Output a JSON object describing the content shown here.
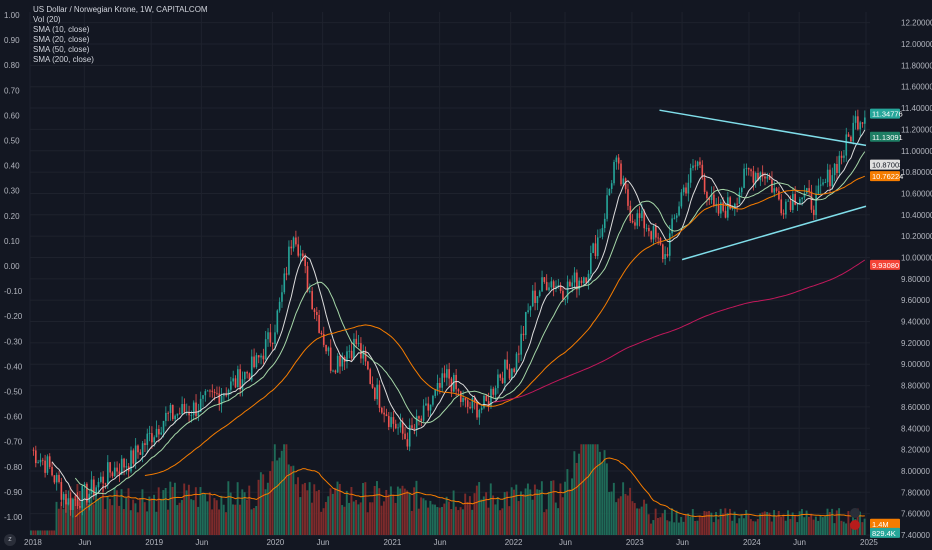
{
  "header": {
    "title": "US Dollar / Norwegian Krone, 1W, CAPITALCOM",
    "indicators": [
      "Vol (20)",
      "SMA (10, close)",
      "SMA (20, close)",
      "SMA (50, close)",
      "SMA (200, close)"
    ]
  },
  "colors": {
    "background": "#131722",
    "grid": "#1e222d",
    "up": "#26a69a",
    "down": "#ef5350",
    "vol_up": "#1f6b58",
    "vol_down": "#7d2b2b",
    "sma10": "#dcdcdc",
    "sma20": "#a5d6a7",
    "sma50": "#f57c00",
    "sma200": "#c2185b",
    "vol_ma": "#f57c00",
    "trendline": "#80deea"
  },
  "icons": {
    "bolt": "bolt-icon",
    "flag": "flag-icon",
    "corner": "timezone-icon"
  },
  "chart_data": {
    "type": "candlestick",
    "symbol": "USDNOK",
    "interval": "1W",
    "x_labels": [
      "2018",
      "Jun",
      "2019",
      "Jun",
      "2020",
      "Jun",
      "2021",
      "Jun",
      "2022",
      "Jun",
      "2023",
      "Jun",
      "2024",
      "Jun",
      "2025"
    ],
    "price_ticks": [
      "12.20000",
      "12.00000",
      "11.80000",
      "11.60000",
      "11.40000",
      "11.20000",
      "11.00000",
      "10.80000",
      "10.60000",
      "10.40000",
      "10.20000",
      "10.00000",
      "9.80000",
      "9.60000",
      "9.40000",
      "9.20000",
      "9.00000",
      "8.80000",
      "8.60000",
      "8.40000",
      "8.20000",
      "8.00000",
      "7.80000",
      "7.60000",
      "7.40000"
    ],
    "left_ticks": [
      "1.00",
      "0.90",
      "0.80",
      "0.70",
      "0.60",
      "0.50",
      "0.40",
      "0.30",
      "0.20",
      "0.10",
      "0.00",
      "-0.10",
      "-0.20",
      "-0.30",
      "-0.40",
      "-0.50",
      "-0.60",
      "-0.70",
      "-0.80",
      "-0.90",
      "-1.00"
    ],
    "price_range": [
      7.4,
      12.3
    ],
    "tags": [
      {
        "text": "11.34776",
        "price": 11.34776,
        "color": "#26a69a"
      },
      {
        "text": "11.13091",
        "price": 11.13091,
        "color": "#1e7e64"
      },
      {
        "text": "10.87003",
        "price": 10.87003,
        "color": "#e0e0e0"
      },
      {
        "text": "10.76224",
        "price": 10.76224,
        "color": "#f57c00"
      },
      {
        "text": "9.93080",
        "price": 9.9308,
        "color": "#f44336"
      },
      {
        "text": "1.4M",
        "price": 7.505,
        "color": "#f57c00"
      },
      {
        "text": "829.4K",
        "price": 7.42,
        "color": "#26a69a"
      }
    ],
    "trendlines": [
      {
        "t0": 0.753,
        "p0": 11.38,
        "t1": 1.0,
        "p1": 11.05
      },
      {
        "t0": 0.78,
        "p0": 9.98,
        "t1": 1.0,
        "p1": 10.48
      }
    ],
    "anchors": [
      [
        0.0,
        8.2
      ],
      [
        0.02,
        8.05
      ],
      [
        0.045,
        7.7
      ],
      [
        0.07,
        7.8
      ],
      [
        0.095,
        8.0
      ],
      [
        0.12,
        8.1
      ],
      [
        0.16,
        8.5
      ],
      [
        0.2,
        8.6
      ],
      [
        0.24,
        8.8
      ],
      [
        0.27,
        9.0
      ],
      [
        0.29,
        9.3
      ],
      [
        0.3,
        9.6
      ],
      [
        0.315,
        10.3
      ],
      [
        0.33,
        9.8
      ],
      [
        0.36,
        9.0
      ],
      [
        0.39,
        9.2
      ],
      [
        0.41,
        8.8
      ],
      [
        0.43,
        8.5
      ],
      [
        0.45,
        8.3
      ],
      [
        0.47,
        8.5
      ],
      [
        0.5,
        8.9
      ],
      [
        0.52,
        8.6
      ],
      [
        0.545,
        8.6
      ],
      [
        0.56,
        8.9
      ],
      [
        0.58,
        9.0
      ],
      [
        0.6,
        9.6
      ],
      [
        0.62,
        9.8
      ],
      [
        0.64,
        9.7
      ],
      [
        0.665,
        9.85
      ],
      [
        0.685,
        10.3
      ],
      [
        0.7,
        10.9
      ],
      [
        0.72,
        10.4
      ],
      [
        0.74,
        10.3
      ],
      [
        0.76,
        10.0
      ],
      [
        0.78,
        10.6
      ],
      [
        0.8,
        10.9
      ],
      [
        0.82,
        10.4
      ],
      [
        0.84,
        10.5
      ],
      [
        0.86,
        10.8
      ],
      [
        0.88,
        10.8
      ],
      [
        0.9,
        10.5
      ],
      [
        0.92,
        10.6
      ],
      [
        0.94,
        10.5
      ],
      [
        0.96,
        10.8
      ],
      [
        0.975,
        11.0
      ],
      [
        0.99,
        11.3
      ],
      [
        1.0,
        11.35
      ]
    ]
  }
}
